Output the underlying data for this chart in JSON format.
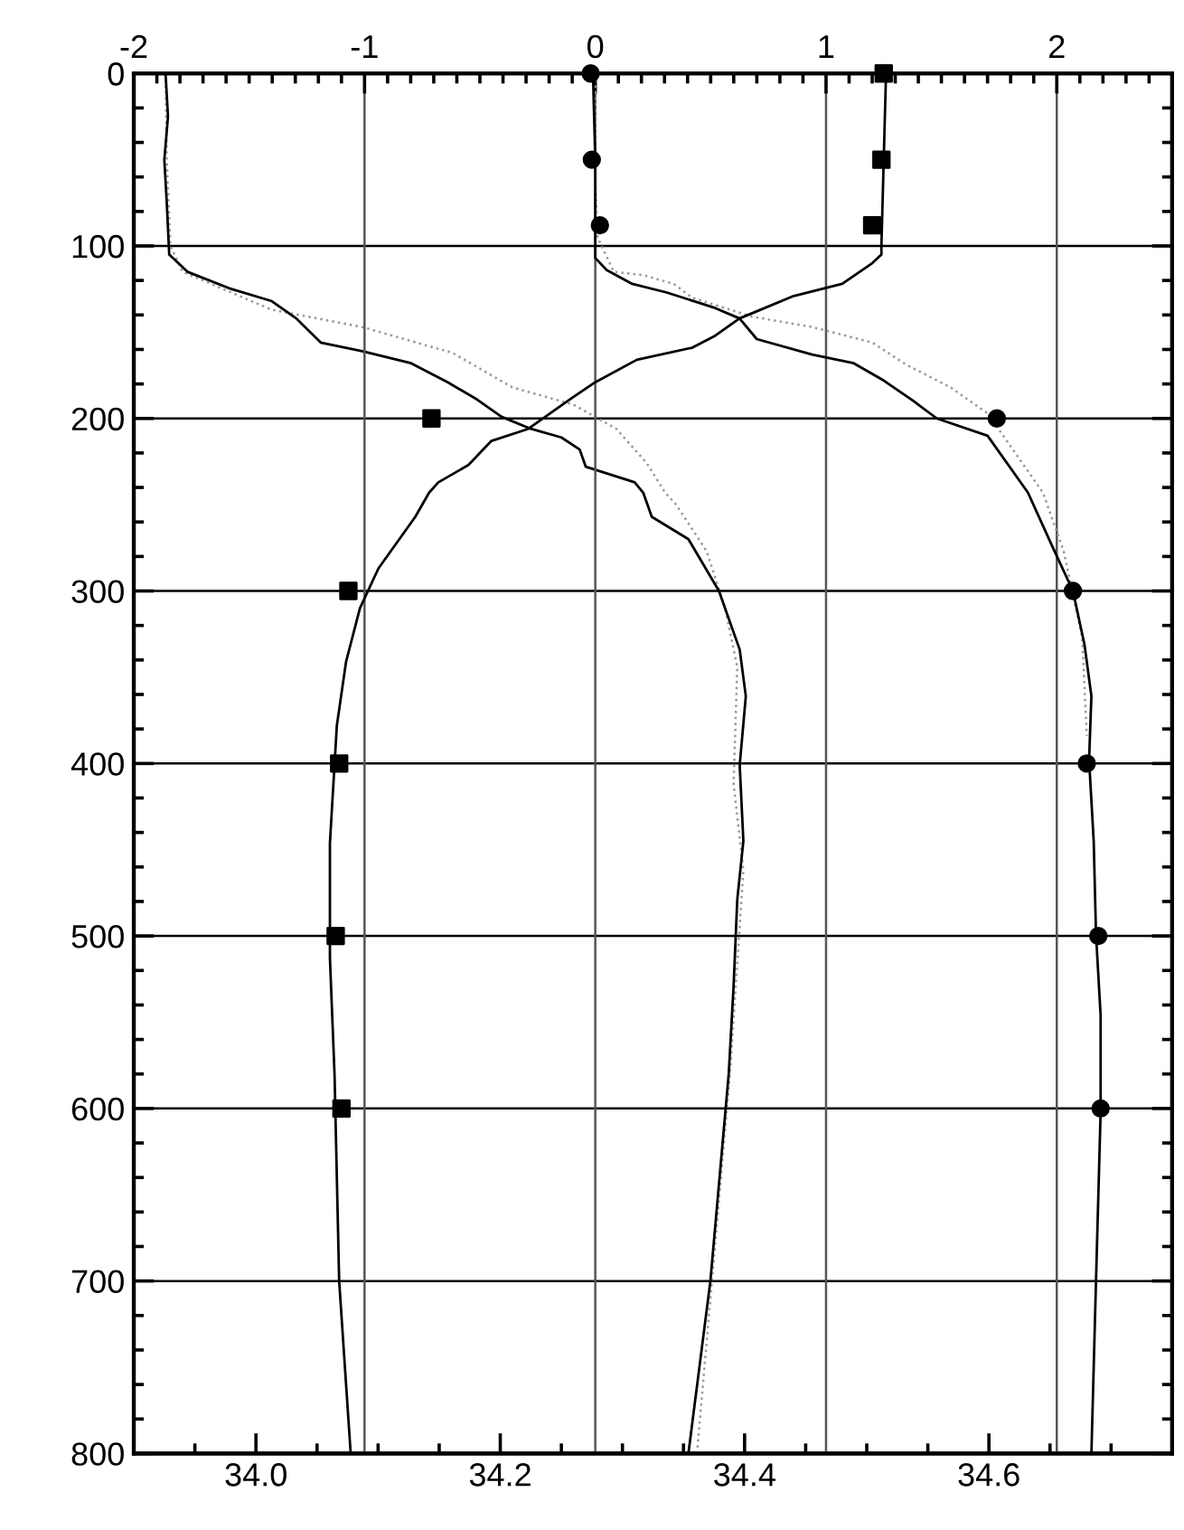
{
  "chart_data": {
    "type": "line",
    "xlim": [
      33.9,
      34.75
    ],
    "xticks": [
      {
        "value": 33.95,
        "label": null
      },
      "34.0",
      {
        "value": 34.05,
        "label": null
      },
      {
        "value": 34.1,
        "label": null
      },
      {
        "value": 34.15,
        "label": null
      },
      {
        "value": 34.2,
        "label": "34.2"
      },
      {
        "value": 34.25,
        "label": null
      },
      {
        "value": 34.3,
        "label": null
      },
      {
        "value": 34.35,
        "label": null
      },
      {
        "value": 34.4,
        "label": "34.4"
      },
      {
        "value": 34.45,
        "label": null
      },
      {
        "value": 34.5,
        "label": null
      },
      {
        "value": 34.55,
        "label": null
      },
      {
        "value": 34.6,
        "label": "34.6"
      },
      {
        "value": 34.65,
        "label": null
      },
      {
        "value": 34.7,
        "label": null
      }
    ],
    "x2lim": [
      -2,
      2.5
    ],
    "x2ticks": [
      -2,
      {
        "value": -1.9,
        "label": null
      },
      {
        "value": -1.8,
        "label": null
      },
      {
        "value": -1.7,
        "label": null
      },
      {
        "value": -1.6,
        "label": null
      },
      {
        "value": -1.5,
        "label": null
      },
      {
        "value": -1.4,
        "label": null
      },
      {
        "value": -1.3,
        "label": null
      },
      {
        "value": -1.2,
        "label": null
      },
      {
        "value": -1.1,
        "label": null
      },
      -1,
      {
        "value": -0.9,
        "label": null
      },
      {
        "value": -0.8,
        "label": null
      },
      {
        "value": -0.7,
        "label": null
      },
      {
        "value": -0.6,
        "label": null
      },
      {
        "value": -0.5,
        "label": null
      },
      {
        "value": -0.4,
        "label": null
      },
      {
        "value": -0.3,
        "label": null
      },
      {
        "value": -0.2,
        "label": null
      },
      {
        "value": -0.1,
        "label": null
      },
      0,
      {
        "value": 0.1,
        "label": null
      },
      {
        "value": 0.2,
        "label": null
      },
      {
        "value": 0.3,
        "label": null
      },
      {
        "value": 0.4,
        "label": null
      },
      {
        "value": 0.5,
        "label": null
      },
      {
        "value": 0.6,
        "label": null
      },
      {
        "value": 0.7,
        "label": null
      },
      {
        "value": 0.8,
        "label": null
      },
      {
        "value": 0.9,
        "label": null
      },
      1,
      {
        "value": 1.1,
        "label": null
      },
      {
        "value": 1.2,
        "label": null
      },
      {
        "value": 1.3,
        "label": null
      },
      {
        "value": 1.4,
        "label": null
      },
      {
        "value": 1.5,
        "label": null
      },
      {
        "value": 1.6,
        "label": null
      },
      {
        "value": 1.7,
        "label": null
      },
      {
        "value": 1.8,
        "label": null
      },
      {
        "value": 1.9,
        "label": null
      },
      2,
      {
        "value": 2.1,
        "label": null
      },
      {
        "value": 2.2,
        "label": null
      },
      {
        "value": 2.3,
        "label": null
      },
      {
        "value": 2.4,
        "label": null
      }
    ],
    "ylim": [
      800,
      0
    ],
    "yticks": [
      0,
      {
        "value": 20,
        "label": null
      },
      {
        "value": 40,
        "label": null
      },
      {
        "value": 60,
        "label": null
      },
      {
        "value": 80,
        "label": null
      },
      100,
      {
        "value": 120,
        "label": null
      },
      {
        "value": 140,
        "label": null
      },
      {
        "value": 160,
        "label": null
      },
      {
        "value": 180,
        "label": null
      },
      200,
      {
        "value": 220,
        "label": null
      },
      {
        "value": 240,
        "label": null
      },
      {
        "value": 260,
        "label": null
      },
      {
        "value": 280,
        "label": null
      },
      300,
      {
        "value": 320,
        "label": null
      },
      {
        "value": 340,
        "label": null
      },
      {
        "value": 360,
        "label": null
      },
      {
        "value": 380,
        "label": null
      },
      400,
      {
        "value": 420,
        "label": null
      },
      {
        "value": 440,
        "label": null
      },
      {
        "value": 460,
        "label": null
      },
      {
        "value": 480,
        "label": null
      },
      500,
      {
        "value": 520,
        "label": null
      },
      {
        "value": 540,
        "label": null
      },
      {
        "value": 560,
        "label": null
      },
      {
        "value": 580,
        "label": null
      },
      600,
      {
        "value": 620,
        "label": null
      },
      {
        "value": 640,
        "label": null
      },
      {
        "value": 660,
        "label": null
      },
      {
        "value": 680,
        "label": null
      },
      700,
      {
        "value": 720,
        "label": null
      },
      {
        "value": 740,
        "label": null
      },
      {
        "value": 760,
        "label": null
      },
      {
        "value": 780,
        "label": null
      },
      800
    ],
    "grid": true,
    "series": [
      {
        "color": "#999999",
        "line_style": "dotted",
        "x": [
          33.926,
          33.927,
          33.93,
          33.94,
          34.013,
          34.087,
          34.161,
          34.21,
          34.26,
          34.295,
          34.32,
          34.335,
          34.344,
          34.369,
          34.384,
          34.394,
          34.391,
          34.399,
          34.388,
          34.361
        ],
        "values": [
          0,
          50,
          100,
          115,
          137,
          147,
          162,
          182,
          192,
          206,
          226,
          243,
          250,
          277,
          310,
          344,
          412,
          462,
          580,
          800
        ]
      },
      {
        "axis": "x2",
        "color": "#999999",
        "line_style": "dotted",
        "x": [
          0.0,
          0.0,
          0.01,
          0.08,
          0.21,
          0.34,
          0.42,
          0.68,
          0.94,
          1.2,
          1.35,
          1.54,
          1.7,
          1.94,
          2.03,
          2.11,
          2.13
        ],
        "values": [
          0,
          60,
          95,
          115,
          117,
          122,
          130,
          141,
          147,
          156,
          169,
          182,
          197,
          243,
          277,
          327,
          384
        ]
      },
      {
        "color": "#000000",
        "line_style": "solid",
        "x": [
          33.926,
          33.928,
          33.925,
          33.927,
          33.929,
          33.944,
          33.98,
          34.013,
          34.033,
          34.053,
          34.087,
          34.127,
          34.157,
          34.181,
          34.201,
          34.225,
          34.25,
          34.265,
          34.27,
          34.31,
          34.317,
          34.324,
          34.354,
          34.379,
          34.396,
          34.401,
          34.396,
          34.399,
          34.394,
          34.391,
          34.387,
          34.372,
          34.354
        ],
        "values": [
          0,
          25,
          50,
          75,
          105,
          115,
          125,
          132,
          142,
          156,
          161,
          168,
          179,
          189,
          199,
          206,
          211,
          218,
          228,
          237,
          243,
          257,
          270,
          300,
          334,
          361,
          401,
          445,
          479,
          529,
          580,
          700,
          800
        ]
      },
      {
        "axis": "x2",
        "color": "#000000",
        "line_style": "solid",
        "x": [
          -0.01,
          0.0,
          0.0,
          0.0,
          0.05,
          0.16,
          0.31,
          0.52,
          0.625,
          0.7,
          0.94,
          1.12,
          1.25,
          1.38,
          1.48,
          1.7,
          1.875,
          1.98,
          2.07,
          2.12,
          2.15,
          2.14,
          2.16,
          2.17,
          2.19,
          2.19,
          2.17,
          2.15
        ],
        "values": [
          0,
          51,
          100,
          107,
          114,
          122,
          127,
          136,
          142,
          154,
          163,
          168,
          178,
          190,
          200,
          210,
          243,
          274,
          300,
          331,
          361,
          398,
          445,
          499,
          546,
          602,
          700,
          800
        ]
      },
      {
        "axis": "x2",
        "color": "#000000",
        "line_style": "solid",
        "x": [
          1.26,
          1.25,
          1.24,
          1.24,
          1.2,
          1.07,
          0.86,
          0.68,
          0.625,
          0.52,
          0.42,
          0.18,
          0.0,
          -0.1,
          -0.29,
          -0.45,
          -0.55,
          -0.68,
          -0.72,
          -0.78,
          -0.94,
          -1.02,
          -1.08,
          -1.12,
          -1.15,
          -1.15,
          -1.13,
          -1.11,
          -1.06
        ],
        "values": [
          0,
          50,
          100,
          105,
          110,
          122,
          129,
          139,
          142,
          152,
          159,
          166,
          179,
          188,
          206,
          213,
          227,
          237,
          243,
          257,
          287,
          310,
          341,
          378,
          446,
          513,
          580,
          700,
          800
        ]
      },
      {
        "type": "scatter",
        "axis": "x2",
        "color": "#000000",
        "marker": "circle",
        "x": [
          -0.02,
          -0.015,
          0.02,
          1.74,
          2.07,
          2.13,
          2.18,
          2.19
        ],
        "values": [
          0,
          50,
          88,
          200,
          300,
          400,
          500,
          600
        ]
      },
      {
        "type": "scatter",
        "axis": "x2",
        "color": "#000000",
        "marker": "square",
        "x": [
          1.25,
          1.24,
          1.2,
          -0.71,
          -1.07,
          -1.11,
          -1.125,
          -1.1
        ],
        "values": [
          0,
          50,
          88,
          200,
          300,
          400,
          500,
          600
        ]
      }
    ]
  }
}
